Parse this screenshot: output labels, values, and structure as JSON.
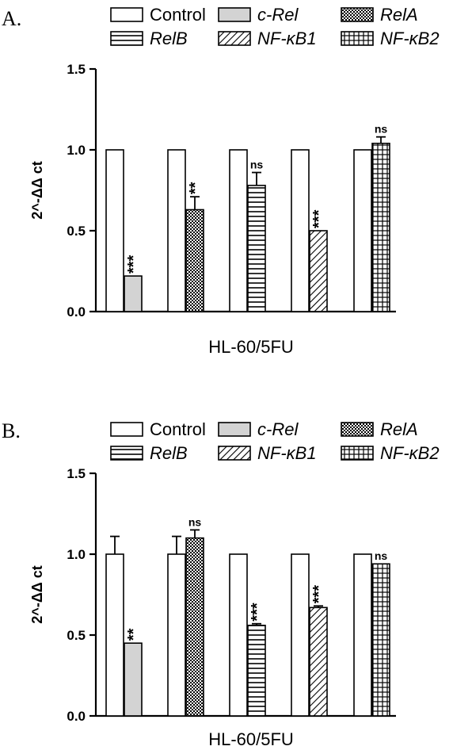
{
  "colors": {
    "bar_stroke": "#000000",
    "c_rel_fill": "#d3d3d3",
    "background": "#ffffff"
  },
  "patterns": {
    "Control": "none",
    "c-Rel": "solid-gray",
    "RelA": "crosshatch",
    "RelB": "horizontal",
    "NF-kB1": "diagonal",
    "NF-kB2": "grid"
  },
  "legend": [
    {
      "key": "Control",
      "label": "Control",
      "italic": false
    },
    {
      "key": "c-Rel",
      "label": "c-Rel",
      "italic": true
    },
    {
      "key": "RelA",
      "label": "RelA",
      "italic": true
    },
    {
      "key": "RelB",
      "label": "RelB",
      "italic": true
    },
    {
      "key": "NF-kB1",
      "label": "NF-κB1",
      "italic": true
    },
    {
      "key": "NF-kB2",
      "label": "NF-κB2",
      "italic": true
    }
  ],
  "chart_data": [
    {
      "type": "bar",
      "panel": "A.",
      "title": "",
      "xlabel": "HL-60/5FU",
      "ylabel": "2^-ΔΔ ct",
      "ylim": [
        0,
        1.5
      ],
      "yticks": [
        "0.0",
        "0.5",
        "1.0",
        "1.5"
      ],
      "grid": false,
      "legend_position": "top",
      "groups": [
        {
          "bars": [
            {
              "series": "Control",
              "value": 1.0,
              "error": 0.005,
              "sig": ""
            },
            {
              "series": "c-Rel",
              "value": 0.22,
              "error": 0.005,
              "sig": "***"
            }
          ]
        },
        {
          "bars": [
            {
              "series": "Control",
              "value": 1.0,
              "error": 0.005,
              "sig": ""
            },
            {
              "series": "RelA",
              "value": 0.63,
              "error": 0.08,
              "sig": "**"
            }
          ]
        },
        {
          "bars": [
            {
              "series": "Control",
              "value": 1.0,
              "error": 0.005,
              "sig": ""
            },
            {
              "series": "RelB",
              "value": 0.78,
              "error": 0.08,
              "sig": "ns"
            }
          ]
        },
        {
          "bars": [
            {
              "series": "Control",
              "value": 1.0,
              "error": 0.005,
              "sig": ""
            },
            {
              "series": "NF-kB1",
              "value": 0.5,
              "error": 0.005,
              "sig": "***"
            }
          ]
        },
        {
          "bars": [
            {
              "series": "Control",
              "value": 1.0,
              "error": 0.005,
              "sig": ""
            },
            {
              "series": "NF-kB2",
              "value": 1.04,
              "error": 0.04,
              "sig": "ns"
            }
          ]
        }
      ]
    },
    {
      "type": "bar",
      "panel": "B.",
      "title": "",
      "xlabel": "HL-60/5FU",
      "ylabel": "2^-ΔΔ ct",
      "ylim": [
        0,
        1.5
      ],
      "yticks": [
        "0.0",
        "0.5",
        "1.0",
        "1.5"
      ],
      "grid": false,
      "legend_position": "top",
      "groups": [
        {
          "bars": [
            {
              "series": "Control",
              "value": 1.0,
              "error": 0.11,
              "sig": ""
            },
            {
              "series": "c-Rel",
              "value": 0.45,
              "error": 0.005,
              "sig": "**"
            }
          ]
        },
        {
          "bars": [
            {
              "series": "Control",
              "value": 1.0,
              "error": 0.11,
              "sig": ""
            },
            {
              "series": "RelA",
              "value": 1.1,
              "error": 0.05,
              "sig": "ns"
            }
          ]
        },
        {
          "bars": [
            {
              "series": "Control",
              "value": 1.0,
              "error": 0.005,
              "sig": ""
            },
            {
              "series": "RelB",
              "value": 0.56,
              "error": 0.01,
              "sig": "***"
            }
          ]
        },
        {
          "bars": [
            {
              "series": "Control",
              "value": 1.0,
              "error": 0.005,
              "sig": ""
            },
            {
              "series": "NF-kB1",
              "value": 0.67,
              "error": 0.01,
              "sig": "***"
            }
          ]
        },
        {
          "bars": [
            {
              "series": "Control",
              "value": 1.0,
              "error": 0.005,
              "sig": ""
            },
            {
              "series": "NF-kB2",
              "value": 0.94,
              "error": 0.005,
              "sig": "ns"
            }
          ]
        }
      ]
    }
  ]
}
